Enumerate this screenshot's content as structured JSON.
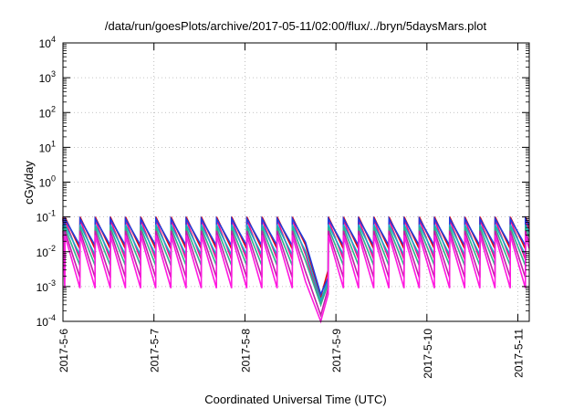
{
  "chart_data": {
    "type": "line",
    "title": "/data/run/goesPlots/archive/2017-05-11/02:00/flux/../bryn/5daysMars.plot",
    "xlabel": "Coordinated Universal Time (UTC)",
    "ylabel": "cGy/day",
    "y_scale": "log",
    "ylim": [
      0.0001,
      10000
    ],
    "xlim": [
      "2017-05-06T00:00",
      "2017-05-11T03:00"
    ],
    "grid": true,
    "legend": "none",
    "x_ticks": [
      {
        "label": "2017-5-6",
        "value": "2017-05-06"
      },
      {
        "label": "2017-5-7",
        "value": "2017-05-07"
      },
      {
        "label": "2017-5-8",
        "value": "2017-05-08"
      },
      {
        "label": "2017-5-9",
        "value": "2017-05-09"
      },
      {
        "label": "2017-5-10",
        "value": "2017-05-10"
      },
      {
        "label": "2017-5-11",
        "value": "2017-05-11"
      }
    ],
    "y_ticks": [
      {
        "base": "10",
        "exp": "-4",
        "value": 0.0001
      },
      {
        "base": "10",
        "exp": "-3",
        "value": 0.001
      },
      {
        "base": "10",
        "exp": "-2",
        "value": 0.01
      },
      {
        "base": "10",
        "exp": "-1",
        "value": 0.1
      },
      {
        "base": "10",
        "exp": "0",
        "value": 1
      },
      {
        "base": "10",
        "exp": "1",
        "value": 10
      },
      {
        "base": "10",
        "exp": "2",
        "value": 100
      },
      {
        "base": "10",
        "exp": "3",
        "value": 1000
      },
      {
        "base": "10",
        "exp": "4",
        "value": 10000
      }
    ],
    "pattern": {
      "cycle_hours": 4,
      "peak_offset_hours": 0.5,
      "gap": {
        "start": "2017-05-08T16:00",
        "end": "2017-05-08T22:00"
      },
      "gap_min": {
        "time": "2017-05-08T20:00"
      }
    },
    "series": [
      {
        "color": "#e8000b",
        "peak": 0.1,
        "trough": 0.012,
        "gap_min": 0.0005,
        "gap_end": 0.003
      },
      {
        "color": "#f20d8c",
        "peak": 0.085,
        "trough": 0.006,
        "gap_min": 0.0003,
        "gap_end": 0.002
      },
      {
        "color": "#1f3fe0",
        "peak": 0.09,
        "trough": 0.015,
        "gap_min": 0.0006,
        "gap_end": 0.0018
      },
      {
        "color": "#1aa8c8",
        "peak": 0.06,
        "trough": 0.008,
        "gap_min": 0.0004,
        "gap_end": 0.0015
      },
      {
        "color": "#2eb48a",
        "peak": 0.05,
        "trough": 0.004,
        "gap_min": 0.0003,
        "gap_end": 0.0012
      },
      {
        "color": "#c21ea8",
        "peak": 0.04,
        "trough": 0.0018,
        "gap_min": 0.00015,
        "gap_end": 0.0009
      },
      {
        "color": "#ff1ae0",
        "peak": 0.03,
        "trough": 0.0009,
        "gap_min": 0.0001,
        "gap_end": 0.0006
      }
    ]
  }
}
